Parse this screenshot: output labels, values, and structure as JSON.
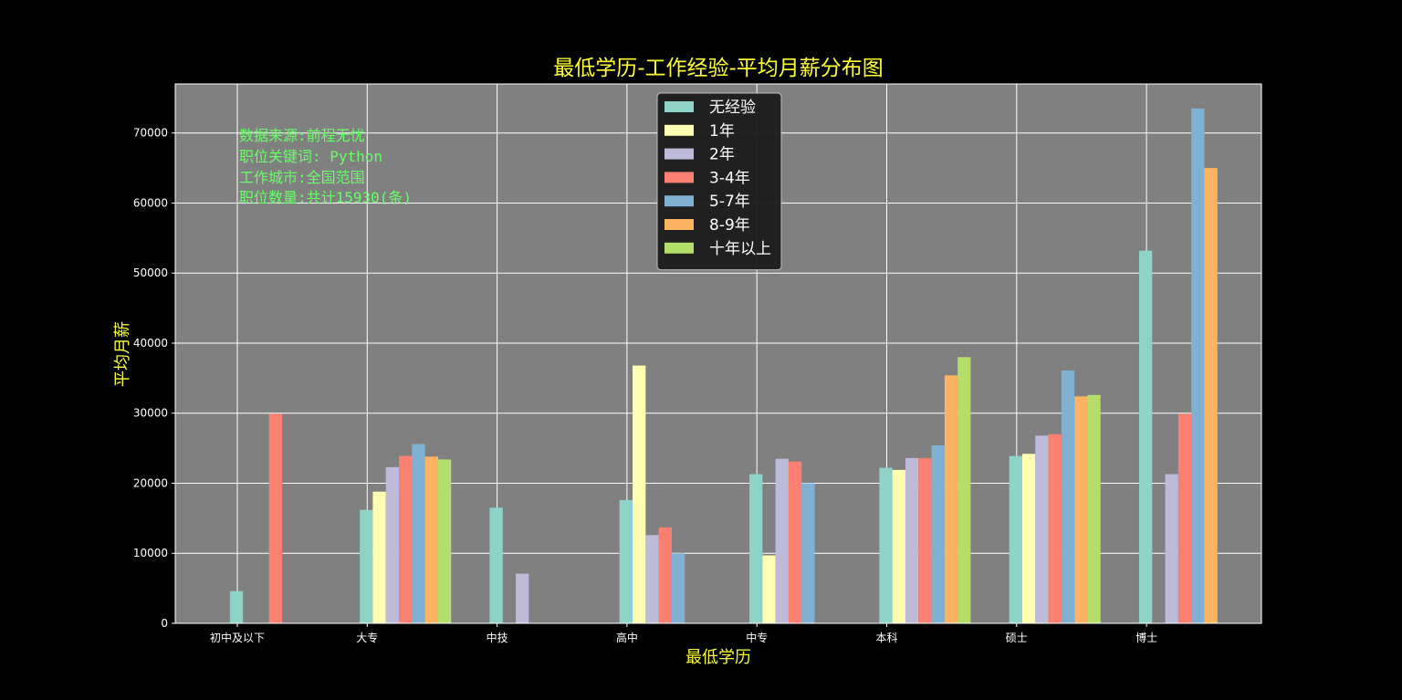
{
  "chart_data": {
    "type": "bar",
    "title": "最低学历-工作经验-平均月薪分布图",
    "xlabel": "最低学历",
    "ylabel": "平均月薪",
    "ylim": [
      0,
      77000
    ],
    "yticks": [
      0,
      10000,
      20000,
      30000,
      40000,
      50000,
      60000,
      70000
    ],
    "grid": true,
    "legend_position": "top-center",
    "categories": [
      "初中及以下",
      "大专",
      "中技",
      "高中",
      "中专",
      "本科",
      "硕士",
      "博士"
    ],
    "series": [
      {
        "name": "无经验",
        "color": "#8dd3c7",
        "values": [
          4600,
          16200,
          16500,
          17600,
          21300,
          22200,
          23900,
          53200
        ]
      },
      {
        "name": "1年",
        "color": "#ffffb3",
        "values": [
          0,
          18800,
          0,
          36800,
          9700,
          21900,
          24200,
          0
        ]
      },
      {
        "name": "2年",
        "color": "#bebada",
        "values": [
          0,
          22300,
          7100,
          12600,
          23500,
          23600,
          26800,
          21300
        ]
      },
      {
        "name": "3-4年",
        "color": "#fb8072",
        "values": [
          29900,
          23900,
          0,
          13700,
          23100,
          23600,
          27000,
          29900
        ]
      },
      {
        "name": "5-7年",
        "color": "#80b1d3",
        "values": [
          0,
          25600,
          0,
          10000,
          20000,
          25400,
          36100,
          73500
        ]
      },
      {
        "name": "8-9年",
        "color": "#fdb462",
        "values": [
          0,
          23800,
          0,
          0,
          0,
          35400,
          32400,
          65000
        ]
      },
      {
        "name": "十年以上",
        "color": "#b3de69",
        "values": [
          0,
          23400,
          0,
          0,
          0,
          38000,
          32600,
          0
        ]
      }
    ],
    "annotations": [
      "数据来源:前程无忧",
      "职位关键词: Python",
      "工作城市:全国范围",
      "职位数量:共计15930(条)"
    ]
  },
  "colors": {
    "background": "#000000",
    "plot_background": "#808080",
    "title": "#ffff33",
    "annotation": "#66ff66",
    "grid": "#ffffff"
  }
}
